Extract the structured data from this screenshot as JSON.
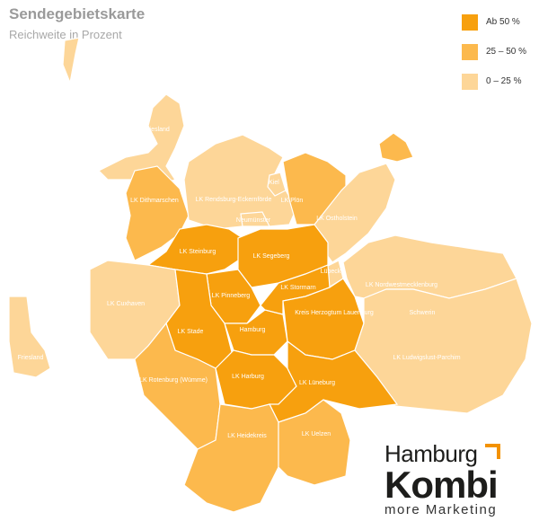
{
  "header": {
    "title": "Sendegebietskarte",
    "subtitle": "Reichweite in Prozent"
  },
  "legend": [
    {
      "label": "Ab 50 %",
      "color": "#F7A00E",
      "level": "high"
    },
    {
      "label": "25 – 50 %",
      "color": "#FCB94D",
      "level": "mid"
    },
    {
      "label": "0 – 25 %",
      "color": "#FDD698",
      "level": "low"
    }
  ],
  "regions": [
    {
      "name": "Nordfriesland",
      "level": "low"
    },
    {
      "name": "Sylt",
      "level": "low",
      "label": ""
    },
    {
      "name": "LK Dithmarschen",
      "level": "mid"
    },
    {
      "name": "LK Rendsburg-Eckernförde",
      "level": "low"
    },
    {
      "name": "Kiel",
      "level": "low"
    },
    {
      "name": "LK Plön",
      "level": "mid"
    },
    {
      "name": "LK Ostholstein",
      "level": "low"
    },
    {
      "name": "Fehmarn",
      "level": "mid",
      "label": ""
    },
    {
      "name": "Neumünster",
      "level": "low"
    },
    {
      "name": "LK Steinburg",
      "level": "high"
    },
    {
      "name": "LK Segeberg",
      "level": "high"
    },
    {
      "name": "Lübeck",
      "level": "low"
    },
    {
      "name": "LK Cuxhaven",
      "level": "low"
    },
    {
      "name": "LK Pinneberg",
      "level": "high"
    },
    {
      "name": "LK Stade",
      "level": "high"
    },
    {
      "name": "Hamburg",
      "level": "high"
    },
    {
      "name": "LK Stormarn",
      "level": "high"
    },
    {
      "name": "Kreis Herzogtum Lauenburg",
      "level": "high"
    },
    {
      "name": "LK Nordwestmecklenburg",
      "level": "low"
    },
    {
      "name": "Schwerin",
      "level": "low"
    },
    {
      "name": "LK Ludwigslust-Parchim",
      "level": "low"
    },
    {
      "name": "LK Rotenburg (Wümme)",
      "level": "mid"
    },
    {
      "name": "LK Harburg",
      "level": "high"
    },
    {
      "name": "LK Lüneburg",
      "level": "high"
    },
    {
      "name": "LK Heidekreis",
      "level": "mid"
    },
    {
      "name": "LK Uelzen",
      "level": "mid"
    },
    {
      "name": "Friesland",
      "level": "low"
    }
  ],
  "logo": {
    "line1": "Hamburg",
    "line2": "Kombi",
    "line3": "more Marketing"
  }
}
